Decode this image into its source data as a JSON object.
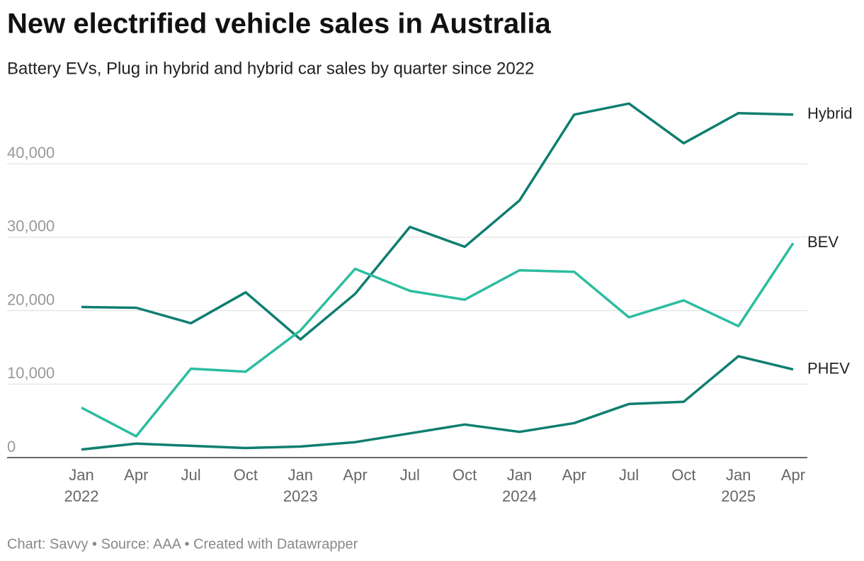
{
  "chart_data": {
    "type": "line",
    "title": "New electrified vehicle sales in Australia",
    "subtitle": "Battery EVs, Plug in hybrid and hybrid car sales by quarter since 2022",
    "footer": "Chart: Savvy • Source: AAA • Created with Datawrapper",
    "categories": [
      "Jan",
      "Apr",
      "Jul",
      "Oct",
      "Jan",
      "Apr",
      "Jul",
      "Oct",
      "Jan",
      "Apr",
      "Jul",
      "Oct",
      "Jan",
      "Apr"
    ],
    "category_years": [
      "2022",
      null,
      null,
      null,
      "2023",
      null,
      null,
      null,
      "2024",
      null,
      null,
      null,
      "2025",
      null
    ],
    "series": [
      {
        "name": "Hybrid",
        "color": "#0f7e70",
        "values": [
          20500,
          20400,
          18300,
          22500,
          16100,
          22300,
          31400,
          28700,
          35000,
          46700,
          48200,
          42800,
          46900,
          46700
        ]
      },
      {
        "name": "BEV",
        "color": "#2cbd9f",
        "values": [
          6800,
          2900,
          12100,
          11700,
          17300,
          25700,
          22700,
          21500,
          25500,
          25300,
          19100,
          21400,
          17900,
          29200
        ]
      },
      {
        "name": "PHEV",
        "color": "#0f7e70",
        "values": [
          1100,
          1900,
          1600,
          1300,
          1500,
          2100,
          3300,
          4500,
          3500,
          4700,
          7300,
          7600,
          13800,
          12000
        ]
      }
    ],
    "ylim": [
      0,
      48800
    ],
    "yticks": [
      0,
      {
        "value": 10000,
        "label": "10,000"
      },
      {
        "value": 20000,
        "label": "20,000"
      },
      {
        "value": 30000,
        "label": "30,000"
      },
      {
        "value": 40000,
        "label": "40,000"
      }
    ],
    "grid": true
  }
}
